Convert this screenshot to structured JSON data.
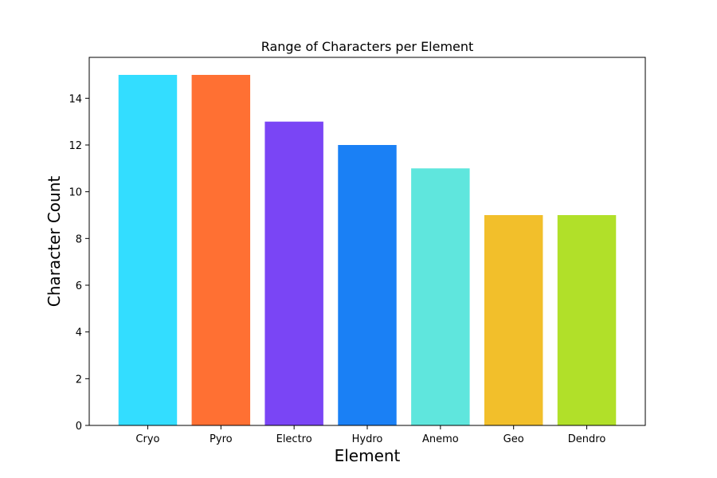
{
  "chart_data": {
    "type": "bar",
    "title": "Range of Characters per Element",
    "xlabel": "Element",
    "ylabel": "Character Count",
    "categories": [
      "Cryo",
      "Pyro",
      "Electro",
      "Hydro",
      "Anemo",
      "Geo",
      "Dendro"
    ],
    "values": [
      15,
      15,
      13,
      12,
      11,
      9,
      9
    ],
    "colors": [
      "#33ddff",
      "#ff7033",
      "#7a45f5",
      "#1a80f5",
      "#5fe6dd",
      "#f2bf2b",
      "#b1e029"
    ],
    "yticks": [
      0,
      2,
      4,
      6,
      8,
      10,
      12,
      14
    ],
    "ylim": [
      0,
      15.75
    ],
    "grid": false,
    "legend": "none"
  }
}
